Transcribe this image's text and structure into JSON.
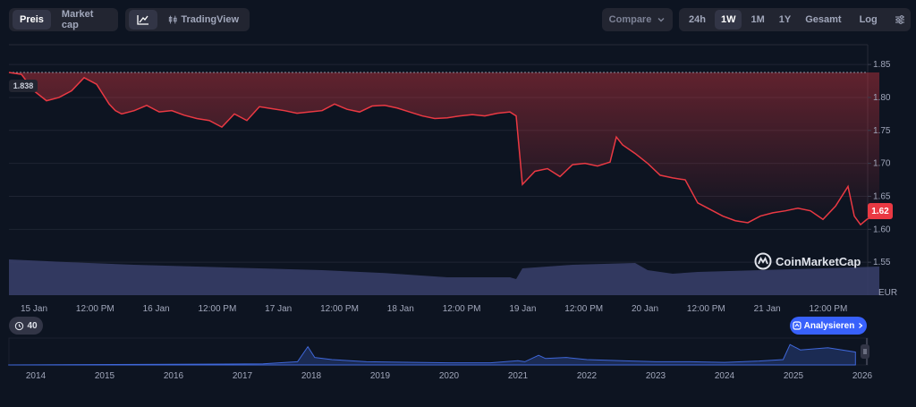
{
  "toolbar": {
    "tab_price": "Preis",
    "tab_marketcap": "Market cap",
    "tradingview": "TradingView",
    "compare": "Compare",
    "ranges": [
      "24h",
      "1W",
      "1M",
      "1Y",
      "Gesamt"
    ],
    "active_range": "1W",
    "log": "Log"
  },
  "badges": {
    "open_price": "1.838",
    "current_price": "1.62",
    "currency": "EUR",
    "history_count": "40",
    "analyze": "Analysieren",
    "watermark": "CoinMarketCap"
  },
  "colors": {
    "line": "#ea3943",
    "volume": "#3a3f6b",
    "overview": "#3f67d9",
    "accent": "#3861fb"
  },
  "chart_data": {
    "type": "line",
    "currency": "EUR",
    "y_ticks": [
      1.55,
      1.6,
      1.65,
      1.7,
      1.75,
      1.8,
      1.85
    ],
    "ylim": [
      1.5,
      1.88
    ],
    "x_tick_labels": [
      "15 Jan",
      "12:00 PM",
      "16 Jan",
      "12:00 PM",
      "17 Jan",
      "12:00 PM",
      "18 Jan",
      "12:00 PM",
      "19 Jan",
      "12:00 PM",
      "20 Jan",
      "12:00 PM",
      "21 Jan",
      "12:00 PM"
    ],
    "x_range_days": [
      0,
      7
    ],
    "price_series": {
      "x": [
        0,
        0.1,
        0.2,
        0.3,
        0.4,
        0.5,
        0.6,
        0.7,
        0.8,
        0.85,
        0.9,
        1.0,
        1.1,
        1.2,
        1.3,
        1.4,
        1.5,
        1.6,
        1.7,
        1.8,
        1.9,
        2.0,
        2.1,
        2.2,
        2.3,
        2.4,
        2.5,
        2.6,
        2.7,
        2.8,
        2.9,
        3.0,
        3.1,
        3.2,
        3.3,
        3.4,
        3.5,
        3.6,
        3.7,
        3.8,
        3.9,
        4.0,
        4.05,
        4.1,
        4.2,
        4.3,
        4.4,
        4.5,
        4.6,
        4.7,
        4.8,
        4.85,
        4.9,
        5.0,
        5.1,
        5.2,
        5.3,
        5.4,
        5.5,
        5.6,
        5.7,
        5.8,
        5.9,
        6.0,
        6.1,
        6.2,
        6.3,
        6.4,
        6.5,
        6.6,
        6.7,
        6.75,
        6.8,
        6.85,
        6.9,
        6.95
      ],
      "y": [
        1.838,
        1.835,
        1.81,
        1.795,
        1.8,
        1.81,
        1.83,
        1.82,
        1.79,
        1.78,
        1.775,
        1.78,
        1.788,
        1.778,
        1.78,
        1.773,
        1.768,
        1.765,
        1.755,
        1.775,
        1.765,
        1.786,
        1.783,
        1.78,
        1.776,
        1.778,
        1.78,
        1.79,
        1.782,
        1.778,
        1.787,
        1.788,
        1.784,
        1.778,
        1.772,
        1.768,
        1.769,
        1.772,
        1.774,
        1.772,
        1.776,
        1.778,
        1.772,
        1.668,
        1.688,
        1.692,
        1.68,
        1.698,
        1.7,
        1.696,
        1.702,
        1.74,
        1.728,
        1.715,
        1.7,
        1.682,
        1.678,
        1.675,
        1.64,
        1.63,
        1.62,
        1.613,
        1.61,
        1.62,
        1.625,
        1.628,
        1.632,
        1.628,
        1.615,
        1.635,
        1.665,
        1.62,
        1.607,
        1.615,
        1.62,
        1.62
      ]
    },
    "volume_series": {
      "x": [
        0,
        0.5,
        1.0,
        1.5,
        2.0,
        2.5,
        3.0,
        3.5,
        4.0,
        4.05,
        4.1,
        4.5,
        5.0,
        5.1,
        5.3,
        5.5,
        6.0,
        6.5,
        6.95
      ],
      "relative": [
        1.0,
        0.92,
        0.85,
        0.8,
        0.75,
        0.7,
        0.62,
        0.5,
        0.5,
        0.45,
        0.75,
        0.85,
        0.9,
        0.7,
        0.6,
        0.65,
        0.7,
        0.75,
        0.8
      ]
    },
    "overview": {
      "x_tick_labels": [
        "2014",
        "2015",
        "2016",
        "2017",
        "2018",
        "2019",
        "2020",
        "2021",
        "2022",
        "2023",
        "2024",
        "2025",
        "2026"
      ],
      "x": [
        2013.6,
        2017.3,
        2017.8,
        2017.95,
        2018.05,
        2018.3,
        2018.8,
        2019.5,
        2020.0,
        2020.6,
        2021.0,
        2021.1,
        2021.3,
        2021.4,
        2021.7,
        2022.0,
        2022.5,
        2023.0,
        2023.5,
        2024.0,
        2024.5,
        2024.85,
        2024.95,
        2025.1,
        2025.5,
        2025.9
      ],
      "relative": [
        0.0,
        0.05,
        0.15,
        0.85,
        0.35,
        0.25,
        0.15,
        0.12,
        0.1,
        0.1,
        0.2,
        0.15,
        0.45,
        0.3,
        0.35,
        0.25,
        0.2,
        0.15,
        0.15,
        0.12,
        0.18,
        0.25,
        0.95,
        0.7,
        0.8,
        0.6
      ]
    }
  }
}
